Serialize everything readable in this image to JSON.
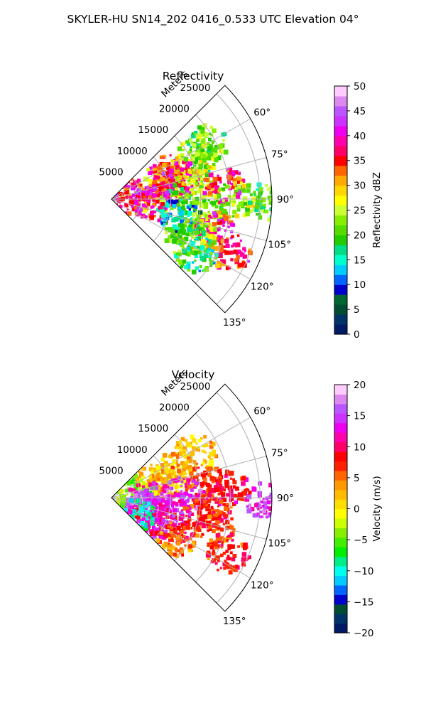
{
  "suptitle": "SKYLER-HU  SN14_202  0416_0.533 UTC Elevation 04°",
  "panels": [
    {
      "title": "Reflectivity",
      "radial_axis_label": "Meters",
      "range_ticks": [
        "5000",
        "10000",
        "15000",
        "20000",
        "25000"
      ],
      "azimuth_ticks": [
        "60°",
        "75°",
        "90°",
        "105°",
        "120°",
        "135°"
      ],
      "colorbar": {
        "label": "Reflectivity dBZ",
        "ticks": [
          "0",
          "5",
          "10",
          "15",
          "20",
          "25",
          "30",
          "35",
          "40",
          "45",
          "50"
        ]
      }
    },
    {
      "title": "Velocity",
      "radial_axis_label": "Meters",
      "range_ticks": [
        "5000",
        "10000",
        "15000",
        "20000",
        "25000"
      ],
      "azimuth_ticks": [
        "60°",
        "75°",
        "90°",
        "105°",
        "120°",
        "135°"
      ],
      "colorbar": {
        "label": "Velocity (m/s)",
        "ticks": [
          "20",
          "15",
          "10",
          "5",
          "0",
          "−5",
          "−10",
          "−15",
          "−20"
        ]
      }
    }
  ],
  "chart_data": [
    {
      "type": "heatmap",
      "projection": "polar-sector",
      "title": "Reflectivity",
      "radial_label": "Meters",
      "range_max_m": 27000,
      "range_rings_m": [
        5000,
        10000,
        15000,
        20000,
        25000
      ],
      "azimuth_range_deg": [
        45,
        135
      ],
      "azimuth_gridlines_deg": [
        60,
        75,
        90,
        105,
        120,
        135
      ],
      "colorbar_label": "Reflectivity dBZ",
      "colorbar_range": [
        0,
        50
      ],
      "colorbar_ticks": [
        0,
        5,
        10,
        15,
        20,
        25,
        30,
        35,
        40,
        45,
        50
      ],
      "colormap": [
        "#001a66",
        "#003366",
        "#004d33",
        "#006633",
        "#0000cc",
        "#0066ff",
        "#00ccff",
        "#00ffcc",
        "#00dd88",
        "#22cc00",
        "#55dd00",
        "#88ee00",
        "#ccff33",
        "#ffff00",
        "#ffd700",
        "#ffaa00",
        "#ff6600",
        "#ff0000",
        "#ff0066",
        "#ff00aa",
        "#ee00ee",
        "#cc33ff",
        "#bb55ff",
        "#dd88ee",
        "#ffccff"
      ],
      "grid": true,
      "echo_regions": [
        {
          "az_deg": 60,
          "range_m": 19000,
          "dbz": 22
        },
        {
          "az_deg": 64,
          "range_m": 16000,
          "dbz": 22
        },
        {
          "az_deg": 66,
          "range_m": 11000,
          "dbz": 36
        },
        {
          "az_deg": 70,
          "range_m": 14000,
          "dbz": 25
        },
        {
          "az_deg": 72,
          "range_m": 9000,
          "dbz": 30
        },
        {
          "az_deg": 74,
          "range_m": 12000,
          "dbz": 37
        },
        {
          "az_deg": 80,
          "range_m": 5000,
          "dbz": 33
        },
        {
          "az_deg": 80,
          "range_m": 10000,
          "dbz": 38
        },
        {
          "az_deg": 82,
          "range_m": 14000,
          "dbz": 24
        },
        {
          "az_deg": 83,
          "range_m": 19000,
          "dbz": 37
        },
        {
          "az_deg": 86,
          "range_m": 3000,
          "dbz": 38
        },
        {
          "az_deg": 90,
          "range_m": 21000,
          "dbz": 24
        },
        {
          "az_deg": 91,
          "range_m": 26000,
          "dbz": 20
        },
        {
          "az_deg": 92,
          "range_m": 11000,
          "dbz": 22
        },
        {
          "az_deg": 96,
          "range_m": 7000,
          "dbz": 38
        },
        {
          "az_deg": 100,
          "range_m": 16000,
          "dbz": 24
        },
        {
          "az_deg": 104,
          "range_m": 12000,
          "dbz": 14
        },
        {
          "az_deg": 106,
          "range_m": 18000,
          "dbz": 38
        },
        {
          "az_deg": 112,
          "range_m": 16000,
          "dbz": 26
        },
        {
          "az_deg": 114,
          "range_m": 22000,
          "dbz": 36
        },
        {
          "az_deg": 118,
          "range_m": 14000,
          "dbz": 20
        },
        {
          "az_deg": 123,
          "range_m": 17000,
          "dbz": 18
        }
      ]
    },
    {
      "type": "heatmap",
      "projection": "polar-sector",
      "title": "Velocity",
      "radial_label": "Meters",
      "range_max_m": 27000,
      "range_rings_m": [
        5000,
        10000,
        15000,
        20000,
        25000
      ],
      "azimuth_range_deg": [
        45,
        135
      ],
      "azimuth_gridlines_deg": [
        60,
        75,
        90,
        105,
        120,
        135
      ],
      "colorbar_label": "Velocity (m/s)",
      "colorbar_range": [
        -20,
        20
      ],
      "colorbar_ticks": [
        -20,
        -15,
        -10,
        -5,
        0,
        5,
        10,
        15,
        20
      ],
      "colormap": [
        "#001a66",
        "#003366",
        "#004d33",
        "#0000cc",
        "#0066ff",
        "#00ccff",
        "#00ffee",
        "#00ee88",
        "#00ee00",
        "#44ee00",
        "#88ee00",
        "#ccff00",
        "#ffff00",
        "#ffdd00",
        "#ffbb00",
        "#ff9900",
        "#ff6600",
        "#ff2200",
        "#ff0000",
        "#ff0066",
        "#ff00aa",
        "#ee00ee",
        "#cc33ff",
        "#bb55ff",
        "#dd88ee",
        "#ffccff"
      ],
      "grid": true,
      "velocity_regions": [
        {
          "az_deg": 62,
          "range_m": 16000,
          "ms": 2
        },
        {
          "az_deg": 66,
          "range_m": 12000,
          "ms": 2
        },
        {
          "az_deg": 70,
          "range_m": 8000,
          "ms": 1
        },
        {
          "az_deg": 74,
          "range_m": 10000,
          "ms": 3
        },
        {
          "az_deg": 78,
          "range_m": 4000,
          "ms": -4
        },
        {
          "az_deg": 82,
          "range_m": 16000,
          "ms": 7
        },
        {
          "az_deg": 86,
          "range_m": 20000,
          "ms": 9
        },
        {
          "az_deg": 88,
          "range_m": 12000,
          "ms": 14
        },
        {
          "az_deg": 91,
          "range_m": 26000,
          "ms": 14
        },
        {
          "az_deg": 94,
          "range_m": 6000,
          "ms": 14
        },
        {
          "az_deg": 98,
          "range_m": 17000,
          "ms": 8
        },
        {
          "az_deg": 102,
          "range_m": 10000,
          "ms": 13
        },
        {
          "az_deg": 106,
          "range_m": 18000,
          "ms": 7
        },
        {
          "az_deg": 108,
          "range_m": 6000,
          "ms": 15
        },
        {
          "az_deg": 112,
          "range_m": 12000,
          "ms": 9
        },
        {
          "az_deg": 116,
          "range_m": 22000,
          "ms": 8
        },
        {
          "az_deg": 118,
          "range_m": 8000,
          "ms": 12
        },
        {
          "az_deg": 122,
          "range_m": 13000,
          "ms": 5
        },
        {
          "az_deg": 128,
          "range_m": 5000,
          "ms": -9
        }
      ]
    }
  ]
}
